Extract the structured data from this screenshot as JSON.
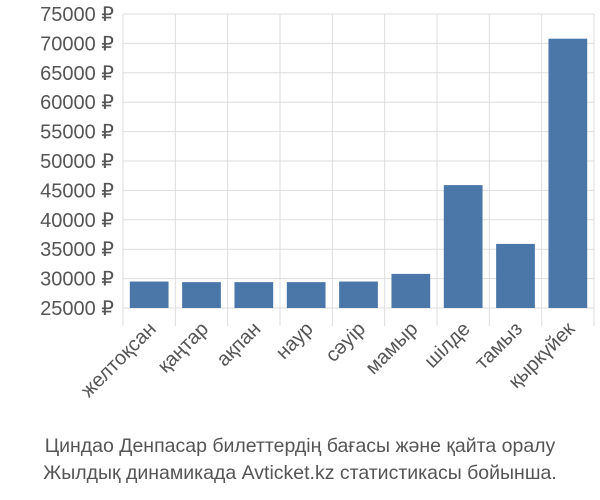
{
  "chart_data": {
    "type": "bar",
    "categories": [
      "желтоқсан",
      "қаңтар",
      "ақпан",
      "наур",
      "сәуір",
      "мамыр",
      "шілде",
      "тамыз",
      "қыркүйек"
    ],
    "values": [
      29500,
      29400,
      29400,
      29400,
      29500,
      30800,
      45900,
      35900,
      70800
    ],
    "ylim": [
      25000,
      75000
    ],
    "y_ticks": [
      25000,
      30000,
      35000,
      40000,
      45000,
      50000,
      55000,
      60000,
      65000,
      70000,
      75000
    ],
    "y_tick_suffix": " ₽",
    "grid": true,
    "bar_color": "#4a76a8",
    "grid_color": "#dddddd",
    "title": "",
    "xlabel": "",
    "ylabel": ""
  },
  "caption": {
    "line1": "Циндао Денпасар билеттердің бағасы және қайта оралу",
    "line2": "Жылдық динамикада Avticket.kz статистикасы бойынша."
  }
}
